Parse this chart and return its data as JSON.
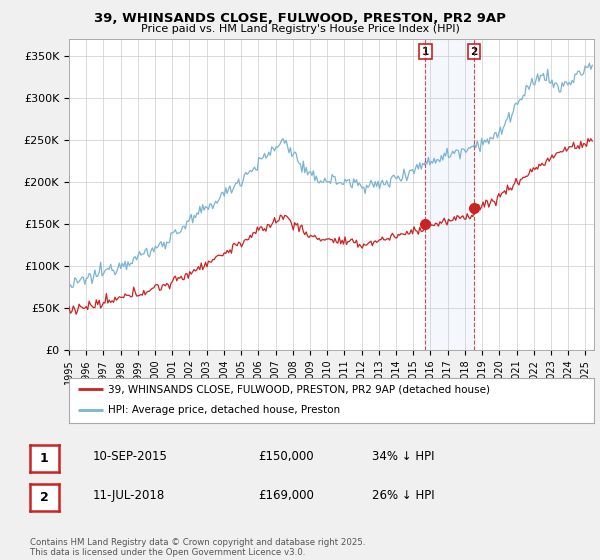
{
  "title1": "39, WHINSANDS CLOSE, FULWOOD, PRESTON, PR2 9AP",
  "title2": "Price paid vs. HM Land Registry's House Price Index (HPI)",
  "ylabel_ticks": [
    "£0",
    "£50K",
    "£100K",
    "£150K",
    "£200K",
    "£250K",
    "£300K",
    "£350K"
  ],
  "ytick_vals": [
    0,
    50000,
    100000,
    150000,
    200000,
    250000,
    300000,
    350000
  ],
  "ylim": [
    0,
    370000
  ],
  "xlim_start": 1995.0,
  "xlim_end": 2025.5,
  "hpi_color": "#7ab3d4",
  "price_color": "#cc2222",
  "marker1_date": 2015.7,
  "marker1_price": 150000,
  "marker2_date": 2018.54,
  "marker2_price": 169000,
  "legend_label1": "39, WHINSANDS CLOSE, FULWOOD, PRESTON, PR2 9AP (detached house)",
  "legend_label2": "HPI: Average price, detached house, Preston",
  "table_row1": [
    "1",
    "10-SEP-2015",
    "£150,000",
    "34% ↓ HPI"
  ],
  "table_row2": [
    "2",
    "11-JUL-2018",
    "£169,000",
    "26% ↓ HPI"
  ],
  "footer": "Contains HM Land Registry data © Crown copyright and database right 2025.\nThis data is licensed under the Open Government Licence v3.0.",
  "bg_color": "#f0f0f0",
  "plot_bg": "#ffffff",
  "grid_color": "#cccccc"
}
